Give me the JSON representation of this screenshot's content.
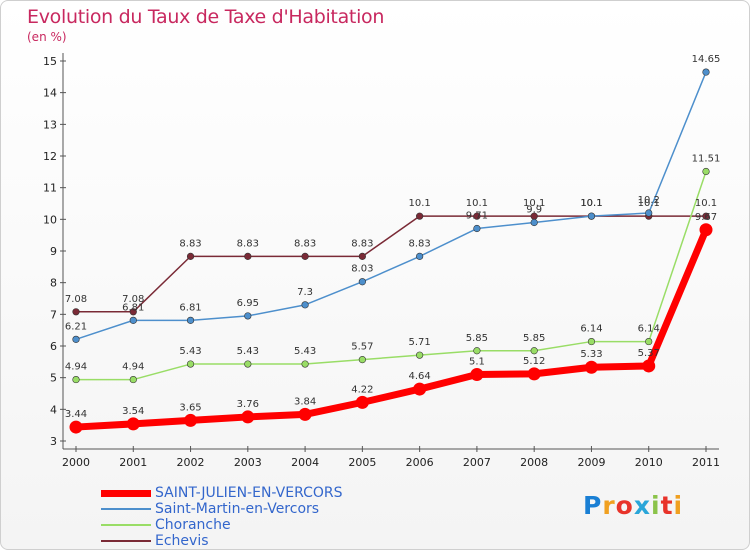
{
  "title": "Evolution du Taux de Taxe d'Habitation",
  "unit_label": "(en %)",
  "logo": {
    "text": "Proxiti",
    "letter_colors": [
      "#1a7fd4",
      "#f0a020",
      "#e8332a",
      "#2aa6d9",
      "#8bc34a",
      "#e8332a",
      "#f0a020"
    ]
  },
  "chart_data": {
    "type": "line",
    "title": "Evolution du Taux de Taxe d'Habitation",
    "ylabel": "(en %)",
    "xlabel": "",
    "x": [
      "2000",
      "2001",
      "2002",
      "2003",
      "2004",
      "2005",
      "2006",
      "2007",
      "2008",
      "2009",
      "2010",
      "2011"
    ],
    "ylim": [
      3,
      15
    ],
    "yticks": [
      3,
      4,
      5,
      6,
      7,
      8,
      9,
      10,
      11,
      12,
      13,
      14,
      15
    ],
    "grid": false,
    "legend_position": "bottom-left",
    "series": [
      {
        "name": "SAINT-JULIEN-EN-VERCORS",
        "color": "#ff0000",
        "values": [
          3.44,
          3.54,
          3.65,
          3.76,
          3.84,
          4.22,
          4.64,
          5.1,
          5.12,
          5.33,
          5.37,
          9.67
        ],
        "labels": [
          "3.44",
          "3.54",
          "3.65",
          "3.76",
          "3.84",
          "4.22",
          "4.64",
          "5.1",
          "5.12",
          "5.33",
          "5.37",
          "9.67"
        ]
      },
      {
        "name": "Saint-Martin-en-Vercors",
        "color": "#4d8fcc",
        "values": [
          6.21,
          6.81,
          6.81,
          6.95,
          7.3,
          8.03,
          8.83,
          9.71,
          9.9,
          10.1,
          10.2,
          14.65
        ],
        "labels": [
          "6.21",
          "6.81",
          "6.81",
          "6.95",
          "7.3",
          "8.03",
          "8.83",
          "9.71",
          "9.9",
          "10.1",
          "10.2",
          "14.65"
        ]
      },
      {
        "name": "Choranche",
        "color": "#99dd66",
        "values": [
          4.94,
          4.94,
          5.43,
          5.43,
          5.43,
          5.57,
          5.71,
          5.85,
          5.85,
          6.14,
          6.14,
          11.51
        ],
        "labels": [
          "4.94",
          "4.94",
          "5.43",
          "5.43",
          "5.43",
          "5.57",
          "5.71",
          "5.85",
          "5.85",
          "6.14",
          "6.14",
          "11.51"
        ]
      },
      {
        "name": "Echevis",
        "color": "#7a2a36",
        "values": [
          7.08,
          7.08,
          8.83,
          8.83,
          8.83,
          8.83,
          10.1,
          10.1,
          10.1,
          10.1,
          10.1,
          10.1
        ],
        "labels": [
          "7.08",
          "7.08",
          "8.83",
          "8.83",
          "8.83",
          "8.83",
          "10.1",
          "10.1",
          "10.1",
          "10.1",
          "10.1",
          "10.1"
        ]
      }
    ]
  }
}
